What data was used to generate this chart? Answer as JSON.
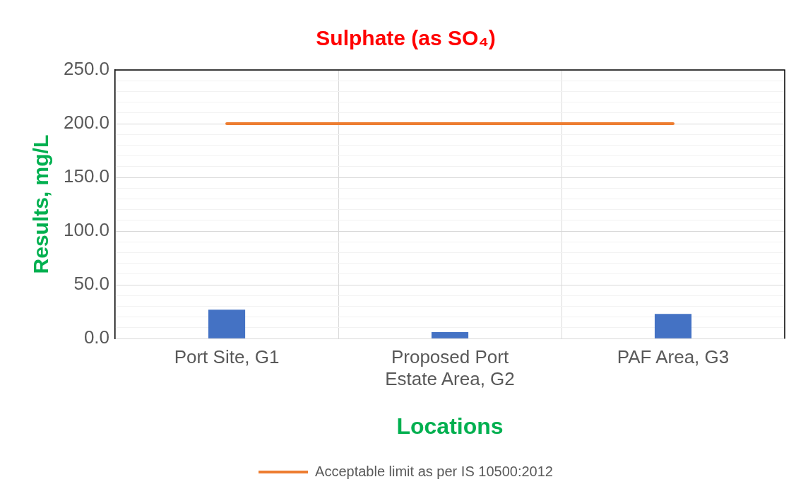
{
  "chart_data": {
    "type": "bar",
    "title": "Sulphate (as SO₄)",
    "xlabel": "Locations",
    "ylabel": "Results, mg/L",
    "categories": [
      "Port Site, G1",
      "Proposed Port Estate Area, G2",
      "PAF Area, G3"
    ],
    "series": [
      {
        "color": "#4472c4",
        "values": [
          27,
          6,
          23
        ]
      },
      {
        "type": "line",
        "name": "Acceptable limit as per IS 10500:2012",
        "color": "#ed7d31",
        "values": [
          200,
          200,
          200
        ]
      }
    ],
    "ylim": [
      0,
      250
    ],
    "yticks": [
      {
        "value": 0,
        "label": "0.0"
      },
      {
        "value": 10,
        "label": null
      },
      {
        "value": 20,
        "label": null
      },
      {
        "value": 30,
        "label": null
      },
      {
        "value": 40,
        "label": null
      },
      {
        "value": 50,
        "label": "50.0"
      },
      {
        "value": 60,
        "label": null
      },
      {
        "value": 70,
        "label": null
      },
      {
        "value": 80,
        "label": null
      },
      {
        "value": 90,
        "label": null
      },
      {
        "value": 100,
        "label": "100.0"
      },
      {
        "value": 110,
        "label": null
      },
      {
        "value": 120,
        "label": null
      },
      {
        "value": 130,
        "label": null
      },
      {
        "value": 140,
        "label": null
      },
      {
        "value": 150,
        "label": "150.0"
      },
      {
        "value": 160,
        "label": null
      },
      {
        "value": 170,
        "label": null
      },
      {
        "value": 180,
        "label": null
      },
      {
        "value": 190,
        "label": null
      },
      {
        "value": 200,
        "label": "200.0"
      },
      {
        "value": 210,
        "label": null
      },
      {
        "value": 220,
        "label": null
      },
      {
        "value": 230,
        "label": null
      },
      {
        "value": 240,
        "label": null
      },
      {
        "value": 250,
        "label": "250.0"
      }
    ],
    "grid": true,
    "legend": "bottom",
    "marker": "none",
    "line_style": "solid"
  }
}
